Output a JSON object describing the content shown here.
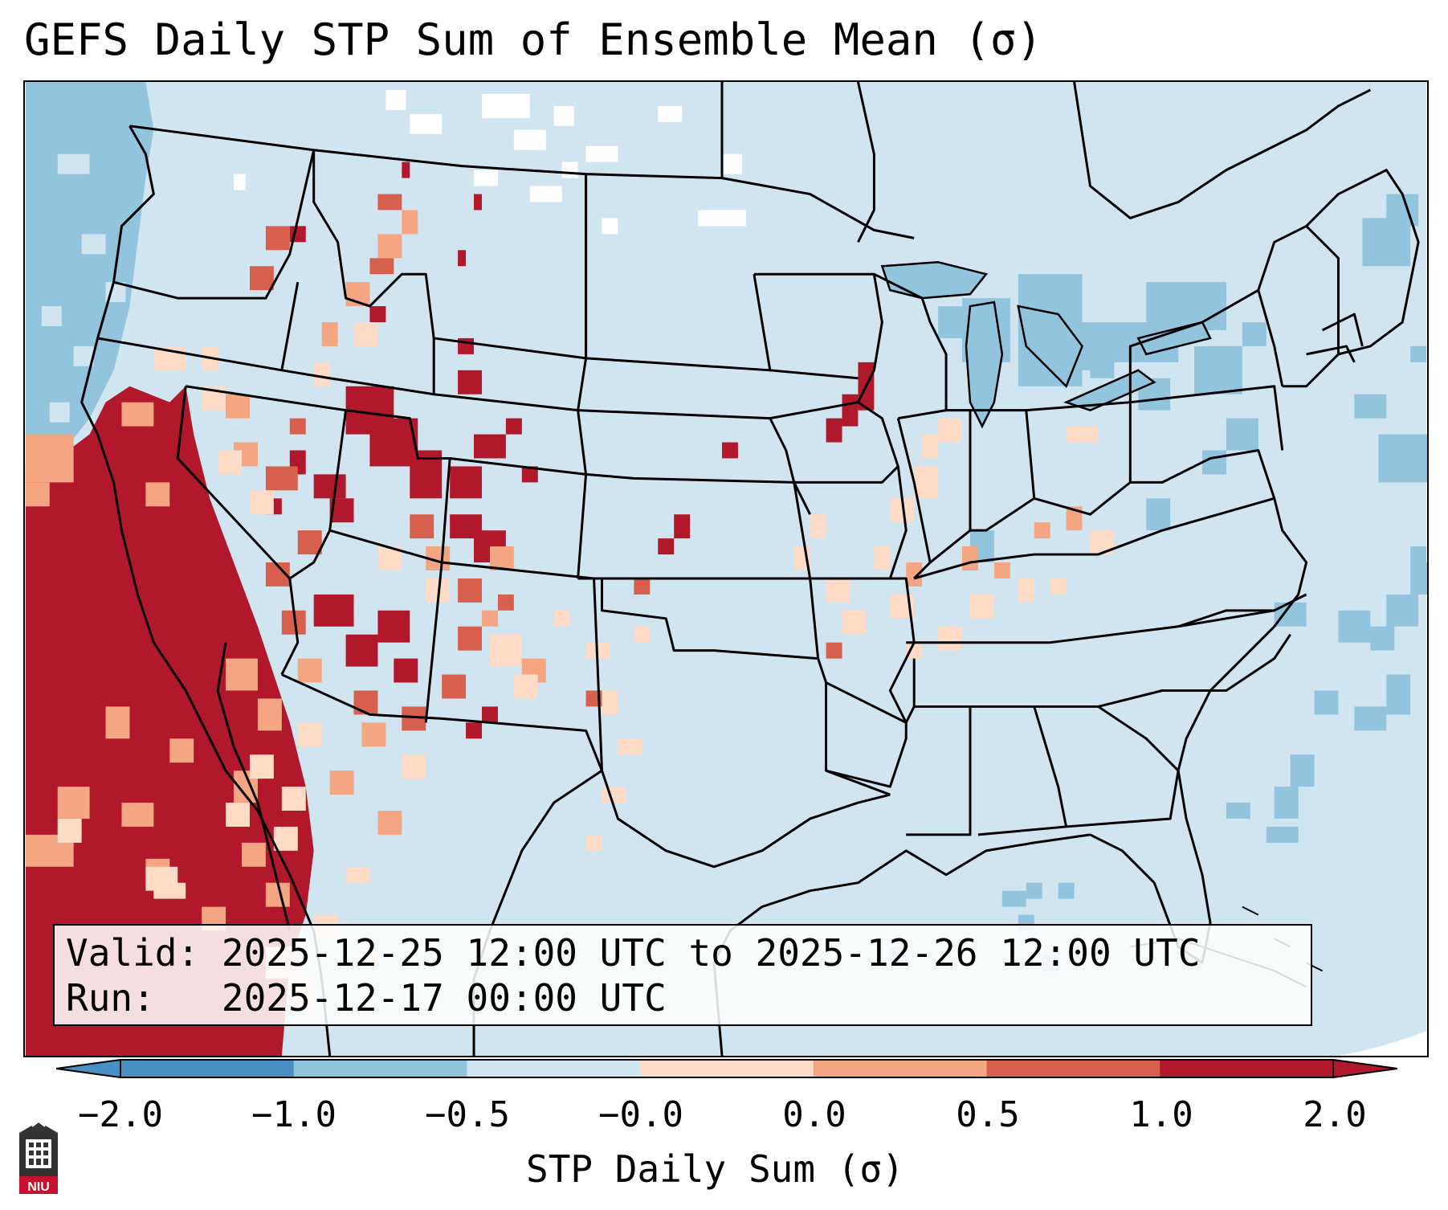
{
  "title": "GEFS Daily STP Sum of Ensemble Mean (σ)",
  "info": {
    "valid_label": "Valid:",
    "valid_value": "2025-12-25 12:00 UTC to 2025-12-26 12:00 UTC",
    "run_label": "Run:",
    "run_value": "2025-12-17 00:00 UTC"
  },
  "colorbar": {
    "label": "STP Daily Sum (σ)",
    "ticks": [
      "−2.0",
      "−1.0",
      "−0.5",
      "−0.0",
      "0.0",
      "0.5",
      "1.0",
      "2.0"
    ],
    "colors": [
      "#4a8fc4",
      "#92c4de",
      "#d1e5f0",
      "#f7f7f7",
      "#fddbc7",
      "#f4a582",
      "#d6604d",
      "#b2182b"
    ],
    "extend": "both"
  },
  "map": {
    "projection": "Lambert Conformal (CONUS)",
    "background_color": "#d1e5f0",
    "dominant_anomaly_region": "Pacific coast / Southwest",
    "strong_positive_color": "#b2182b"
  },
  "logo": {
    "text": "NIU",
    "color": "#c8102e"
  }
}
